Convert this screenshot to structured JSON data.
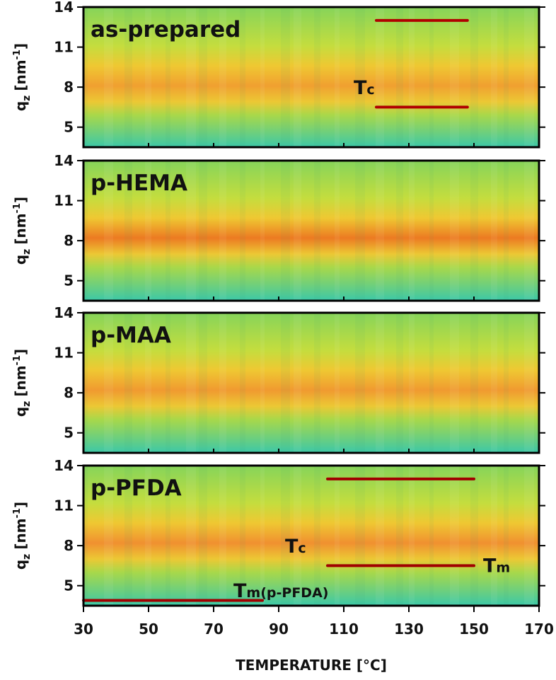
{
  "chart_data": [
    {
      "type": "heatmap",
      "title": "as-prepared",
      "ylabel": {
        "base": "q",
        "sub": "z",
        "unit": "[nm",
        "sup": "-1",
        "close": "]"
      },
      "xlim": [
        30,
        170
      ],
      "ylim": [
        3.5,
        14
      ],
      "yticks": [
        5,
        8,
        11,
        14
      ],
      "band": 8.1,
      "band_color": "#f0a030",
      "lines": [
        {
          "x": [
            120,
            148
          ],
          "y": 13,
          "color": "#b00000"
        },
        {
          "x": [
            120,
            148
          ],
          "y": 6.5,
          "color": "#b00000"
        }
      ],
      "annotations": [
        {
          "text": "T",
          "sub": "c"
        }
      ]
    },
    {
      "type": "heatmap",
      "title": "p-HEMA",
      "ylabel": {
        "base": "q",
        "sub": "z",
        "unit": "[nm",
        "sup": "-1",
        "close": "]"
      },
      "xlim": [
        30,
        170
      ],
      "ylim": [
        3.5,
        14
      ],
      "yticks": [
        5,
        8,
        11,
        14
      ],
      "band": 8.2,
      "band_color": "#ec7a22",
      "lines": [],
      "annotations": []
    },
    {
      "type": "heatmap",
      "title": "p-MAA",
      "ylabel": {
        "base": "q",
        "sub": "z",
        "unit": "[nm",
        "sup": "-1",
        "close": "]"
      },
      "xlim": [
        30,
        170
      ],
      "ylim": [
        3.5,
        14
      ],
      "yticks": [
        5,
        8,
        11,
        14
      ],
      "band": 8.2,
      "band_color": "#f09a30",
      "lines": [],
      "annotations": []
    },
    {
      "type": "heatmap",
      "title": "p-PFDA",
      "ylabel": {
        "base": "q",
        "sub": "z",
        "unit": "[nm",
        "sup": "-1",
        "close": "]"
      },
      "xlabel": "TEMPERATURE [°C]",
      "xlim": [
        30,
        170
      ],
      "xticks": [
        30,
        50,
        70,
        90,
        110,
        130,
        150,
        170
      ],
      "ylim": [
        3.5,
        14
      ],
      "yticks": [
        5,
        8,
        11,
        14
      ],
      "band": 8.2,
      "band_color": "#f09030",
      "lines": [
        {
          "x": [
            105,
            150
          ],
          "y": 13,
          "color": "#a00000"
        },
        {
          "x": [
            105,
            150
          ],
          "y": 6.5,
          "color": "#a00000"
        },
        {
          "x": [
            30,
            85
          ],
          "y": 3.9,
          "color": "#a00000"
        }
      ],
      "annotations": [
        {
          "text": "T",
          "sub": "c"
        },
        {
          "text": "T",
          "sub": "m"
        },
        {
          "text": "T",
          "sub": "m(p-PFDA)"
        }
      ]
    }
  ]
}
